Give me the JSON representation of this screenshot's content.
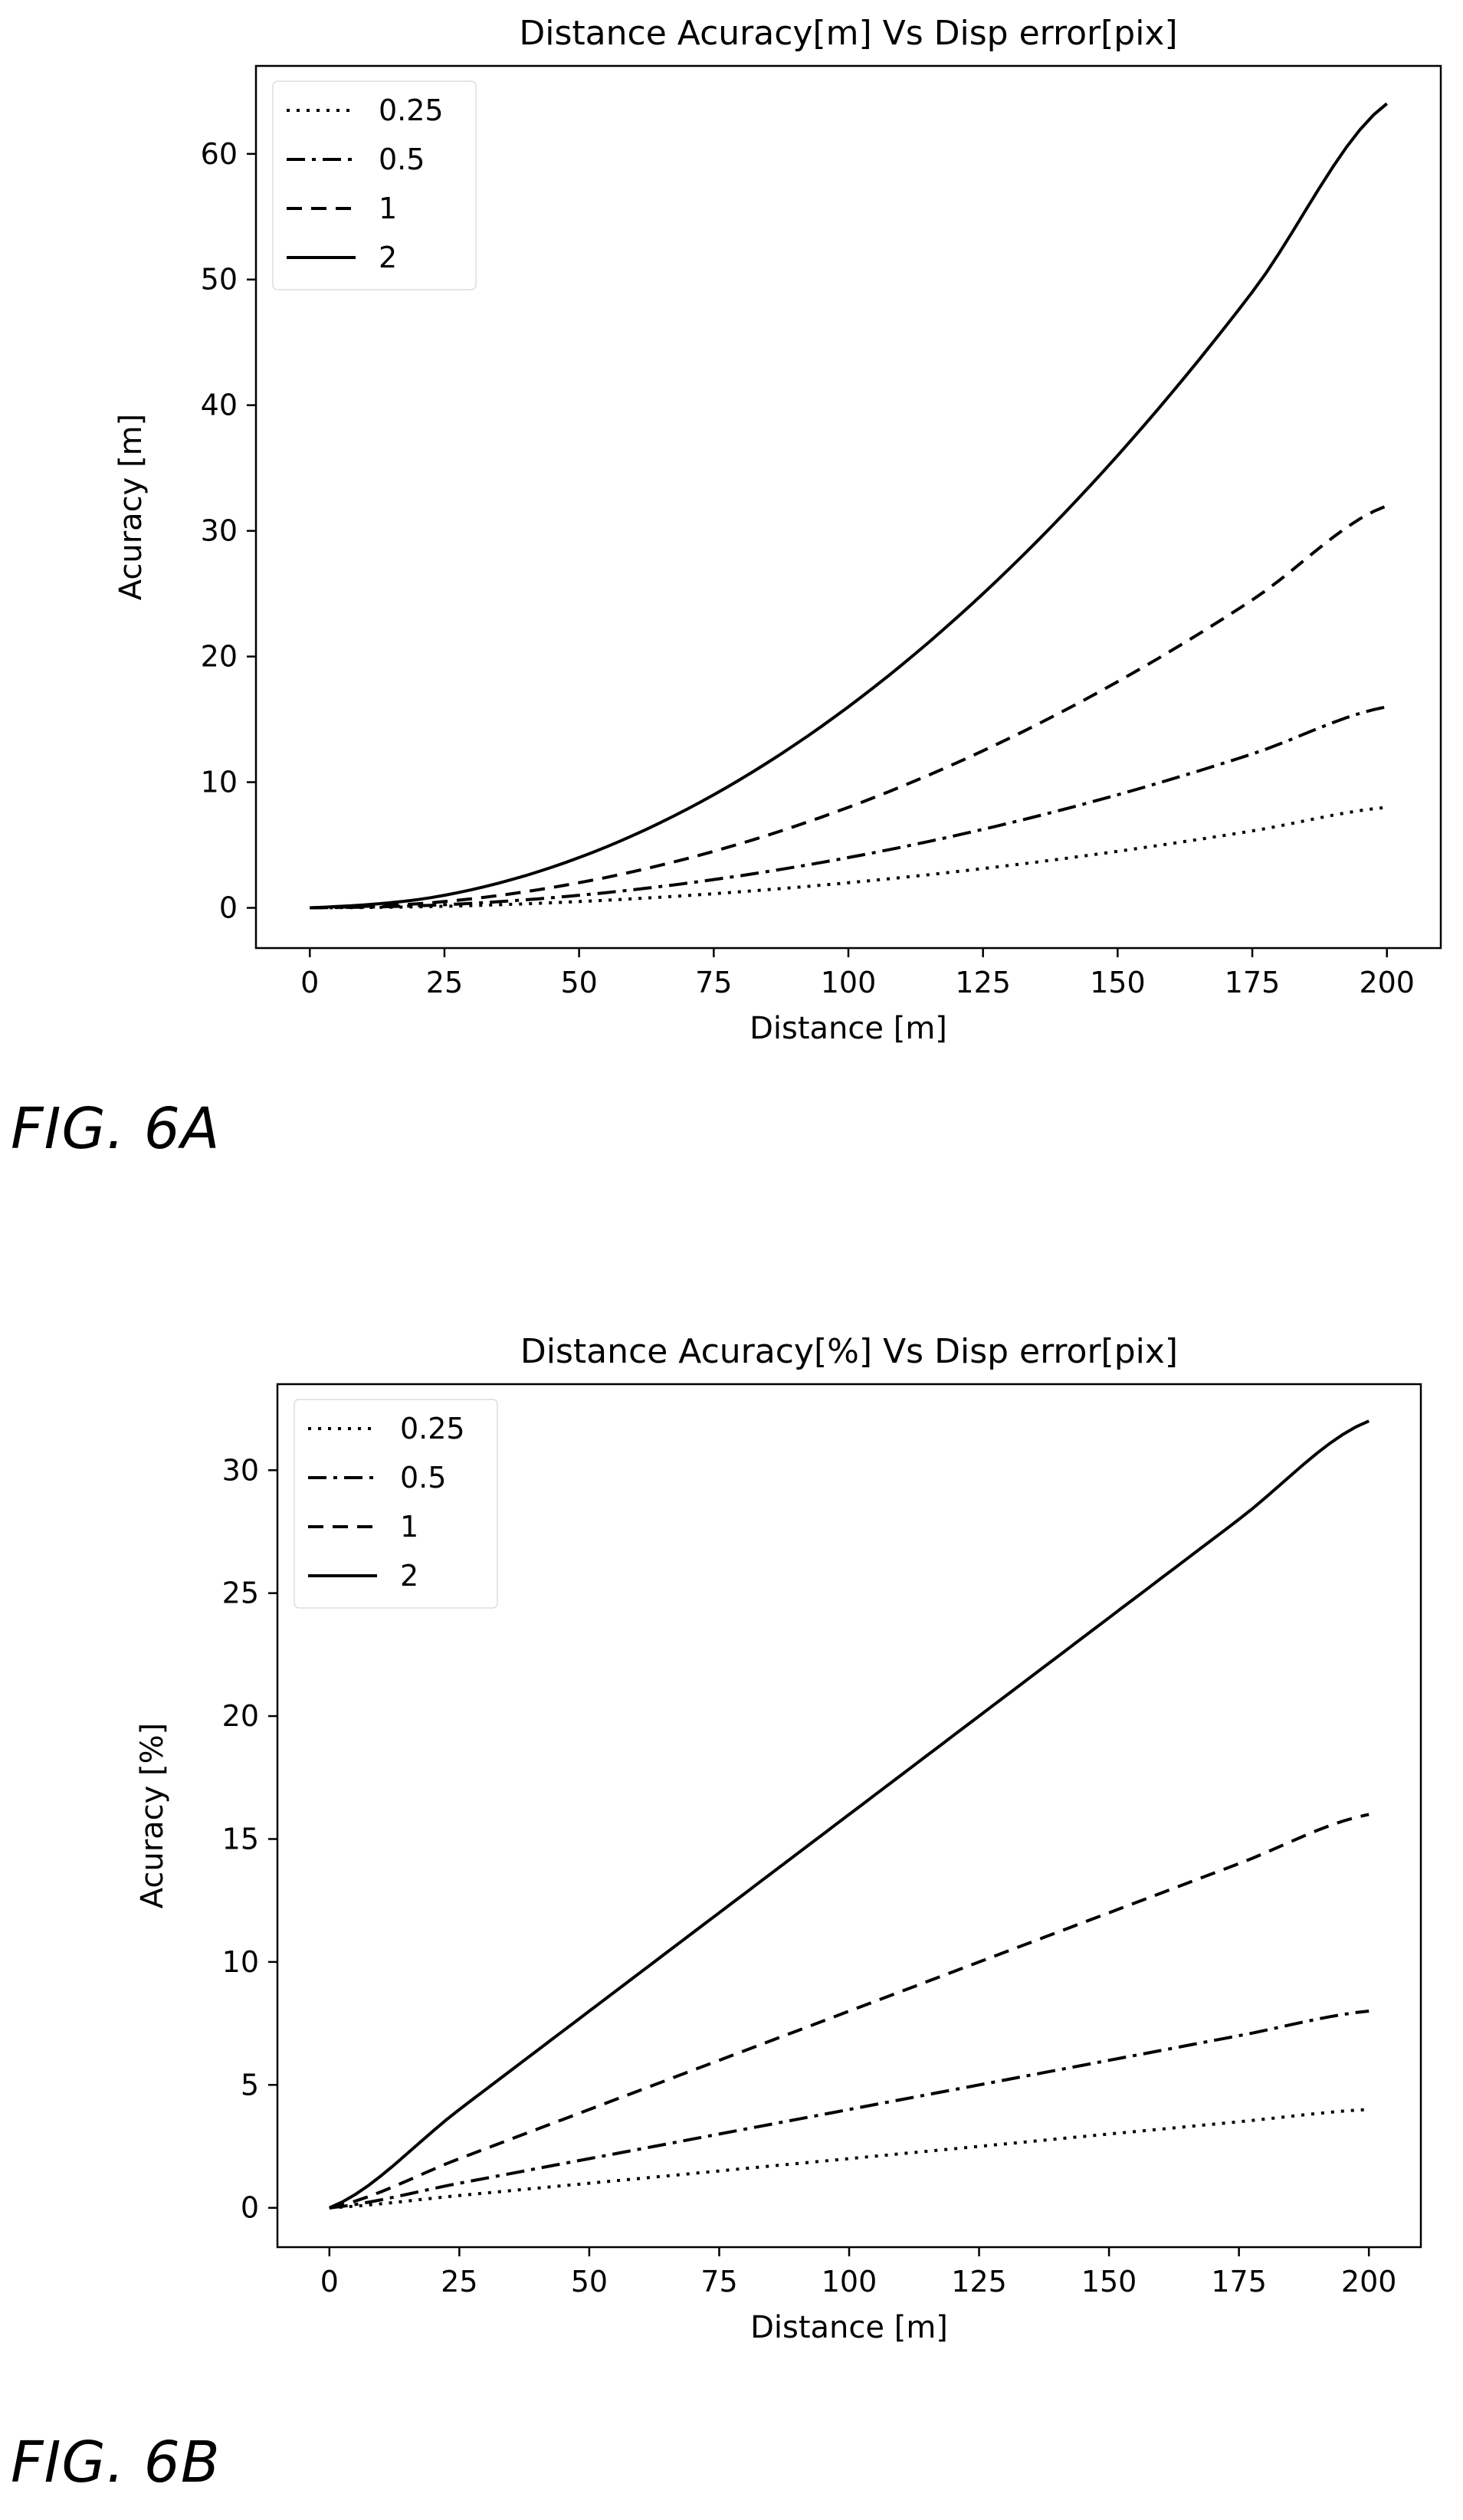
{
  "figures": [
    {
      "caption": "FIG. 6A",
      "chart_data": {
        "type": "line",
        "title": "Distance Acuracy[m] Vs Disp error[pix]",
        "xlabel": "Distance [m]",
        "ylabel": "Acuracy [m]",
        "xlim": [
          -10,
          210
        ],
        "ylim": [
          -3.2,
          67
        ],
        "xticks": [
          0,
          25,
          50,
          75,
          100,
          125,
          150,
          175,
          200
        ],
        "yticks": [
          0,
          10,
          20,
          30,
          40,
          50,
          60
        ],
        "legend_position": "top-left",
        "grid": false,
        "x": [
          0,
          25,
          50,
          75,
          100,
          125,
          150,
          175,
          200
        ],
        "series": [
          {
            "name": "0.25",
            "dash": "dotted",
            "values": [
              0,
              0.125,
              0.5,
              1.125,
              2.0,
              3.125,
              4.5,
              6.125,
              8.0
            ]
          },
          {
            "name": "0.5",
            "dash": "dashdot",
            "values": [
              0,
              0.25,
              1.0,
              2.25,
              4.0,
              6.25,
              9.0,
              12.25,
              16.0
            ]
          },
          {
            "name": "1",
            "dash": "dashed",
            "values": [
              0,
              0.5,
              2.0,
              4.5,
              8.0,
              12.5,
              18.0,
              24.5,
              32.0
            ]
          },
          {
            "name": "2",
            "dash": "solid",
            "values": [
              0,
              1.0,
              4.0,
              9.0,
              16.0,
              25.0,
              36.0,
              49.0,
              64.0
            ]
          }
        ]
      }
    },
    {
      "caption": "FIG. 6B",
      "chart_data": {
        "type": "line",
        "title": "Distance Acuracy[%] Vs Disp error[pix]",
        "xlabel": "Distance [m]",
        "ylabel": "Acuracy [%]",
        "xlim": [
          -10,
          210
        ],
        "ylim": [
          -1.6,
          33.5
        ],
        "xticks": [
          0,
          25,
          50,
          75,
          100,
          125,
          150,
          175,
          200
        ],
        "yticks": [
          0,
          5,
          10,
          15,
          20,
          25,
          30
        ],
        "legend_position": "top-left",
        "grid": false,
        "x": [
          0,
          25,
          50,
          75,
          100,
          125,
          150,
          175,
          200
        ],
        "series": [
          {
            "name": "0.25",
            "dash": "dotted",
            "values": [
              0,
              0.5,
              1.0,
              1.5,
              2.0,
              2.5,
              3.0,
              3.5,
              4.0
            ]
          },
          {
            "name": "0.5",
            "dash": "dashdot",
            "values": [
              0,
              1.0,
              2.0,
              3.0,
              4.0,
              5.0,
              6.0,
              7.0,
              8.0
            ]
          },
          {
            "name": "1",
            "dash": "dashed",
            "values": [
              0,
              2.0,
              4.0,
              6.0,
              8.0,
              10.0,
              12.0,
              14.0,
              16.0
            ]
          },
          {
            "name": "2",
            "dash": "solid",
            "values": [
              0,
              4.0,
              8.0,
              12.0,
              16.0,
              20.0,
              24.0,
              28.0,
              32.0
            ]
          }
        ]
      }
    }
  ]
}
